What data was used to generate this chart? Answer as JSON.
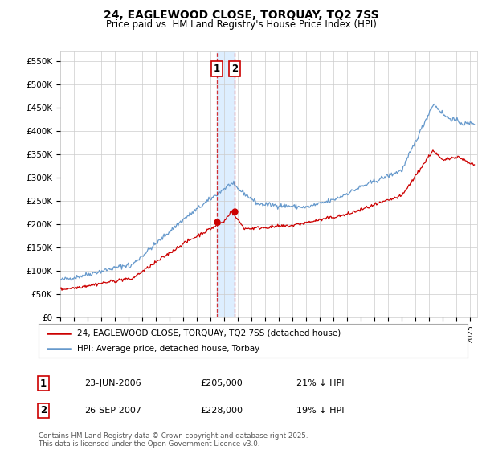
{
  "title": "24, EAGLEWOOD CLOSE, TORQUAY, TQ2 7SS",
  "subtitle": "Price paid vs. HM Land Registry's House Price Index (HPI)",
  "ylabel_ticks": [
    "£0",
    "£50K",
    "£100K",
    "£150K",
    "£200K",
    "£250K",
    "£300K",
    "£350K",
    "£400K",
    "£450K",
    "£500K",
    "£550K"
  ],
  "ytick_vals": [
    0,
    50000,
    100000,
    150000,
    200000,
    250000,
    300000,
    350000,
    400000,
    450000,
    500000,
    550000
  ],
  "ylim": [
    0,
    570000
  ],
  "xlim_start": 1995.0,
  "xlim_end": 2025.5,
  "transaction1_x": 2006.474,
  "transaction1_y": 205000,
  "transaction2_x": 2007.737,
  "transaction2_y": 228000,
  "transaction1_date": "23-JUN-2006",
  "transaction1_price": "£205,000",
  "transaction1_hpi": "21% ↓ HPI",
  "transaction2_date": "26-SEP-2007",
  "transaction2_price": "£228,000",
  "transaction2_hpi": "19% ↓ HPI",
  "legend_label_red": "24, EAGLEWOOD CLOSE, TORQUAY, TQ2 7SS (detached house)",
  "legend_label_blue": "HPI: Average price, detached house, Torbay",
  "footer": "Contains HM Land Registry data © Crown copyright and database right 2025.\nThis data is licensed under the Open Government Licence v3.0.",
  "red_color": "#cc0000",
  "blue_color": "#6699cc",
  "shade_color": "#ddeeff",
  "grid_color": "#cccccc",
  "background_color": "#ffffff"
}
